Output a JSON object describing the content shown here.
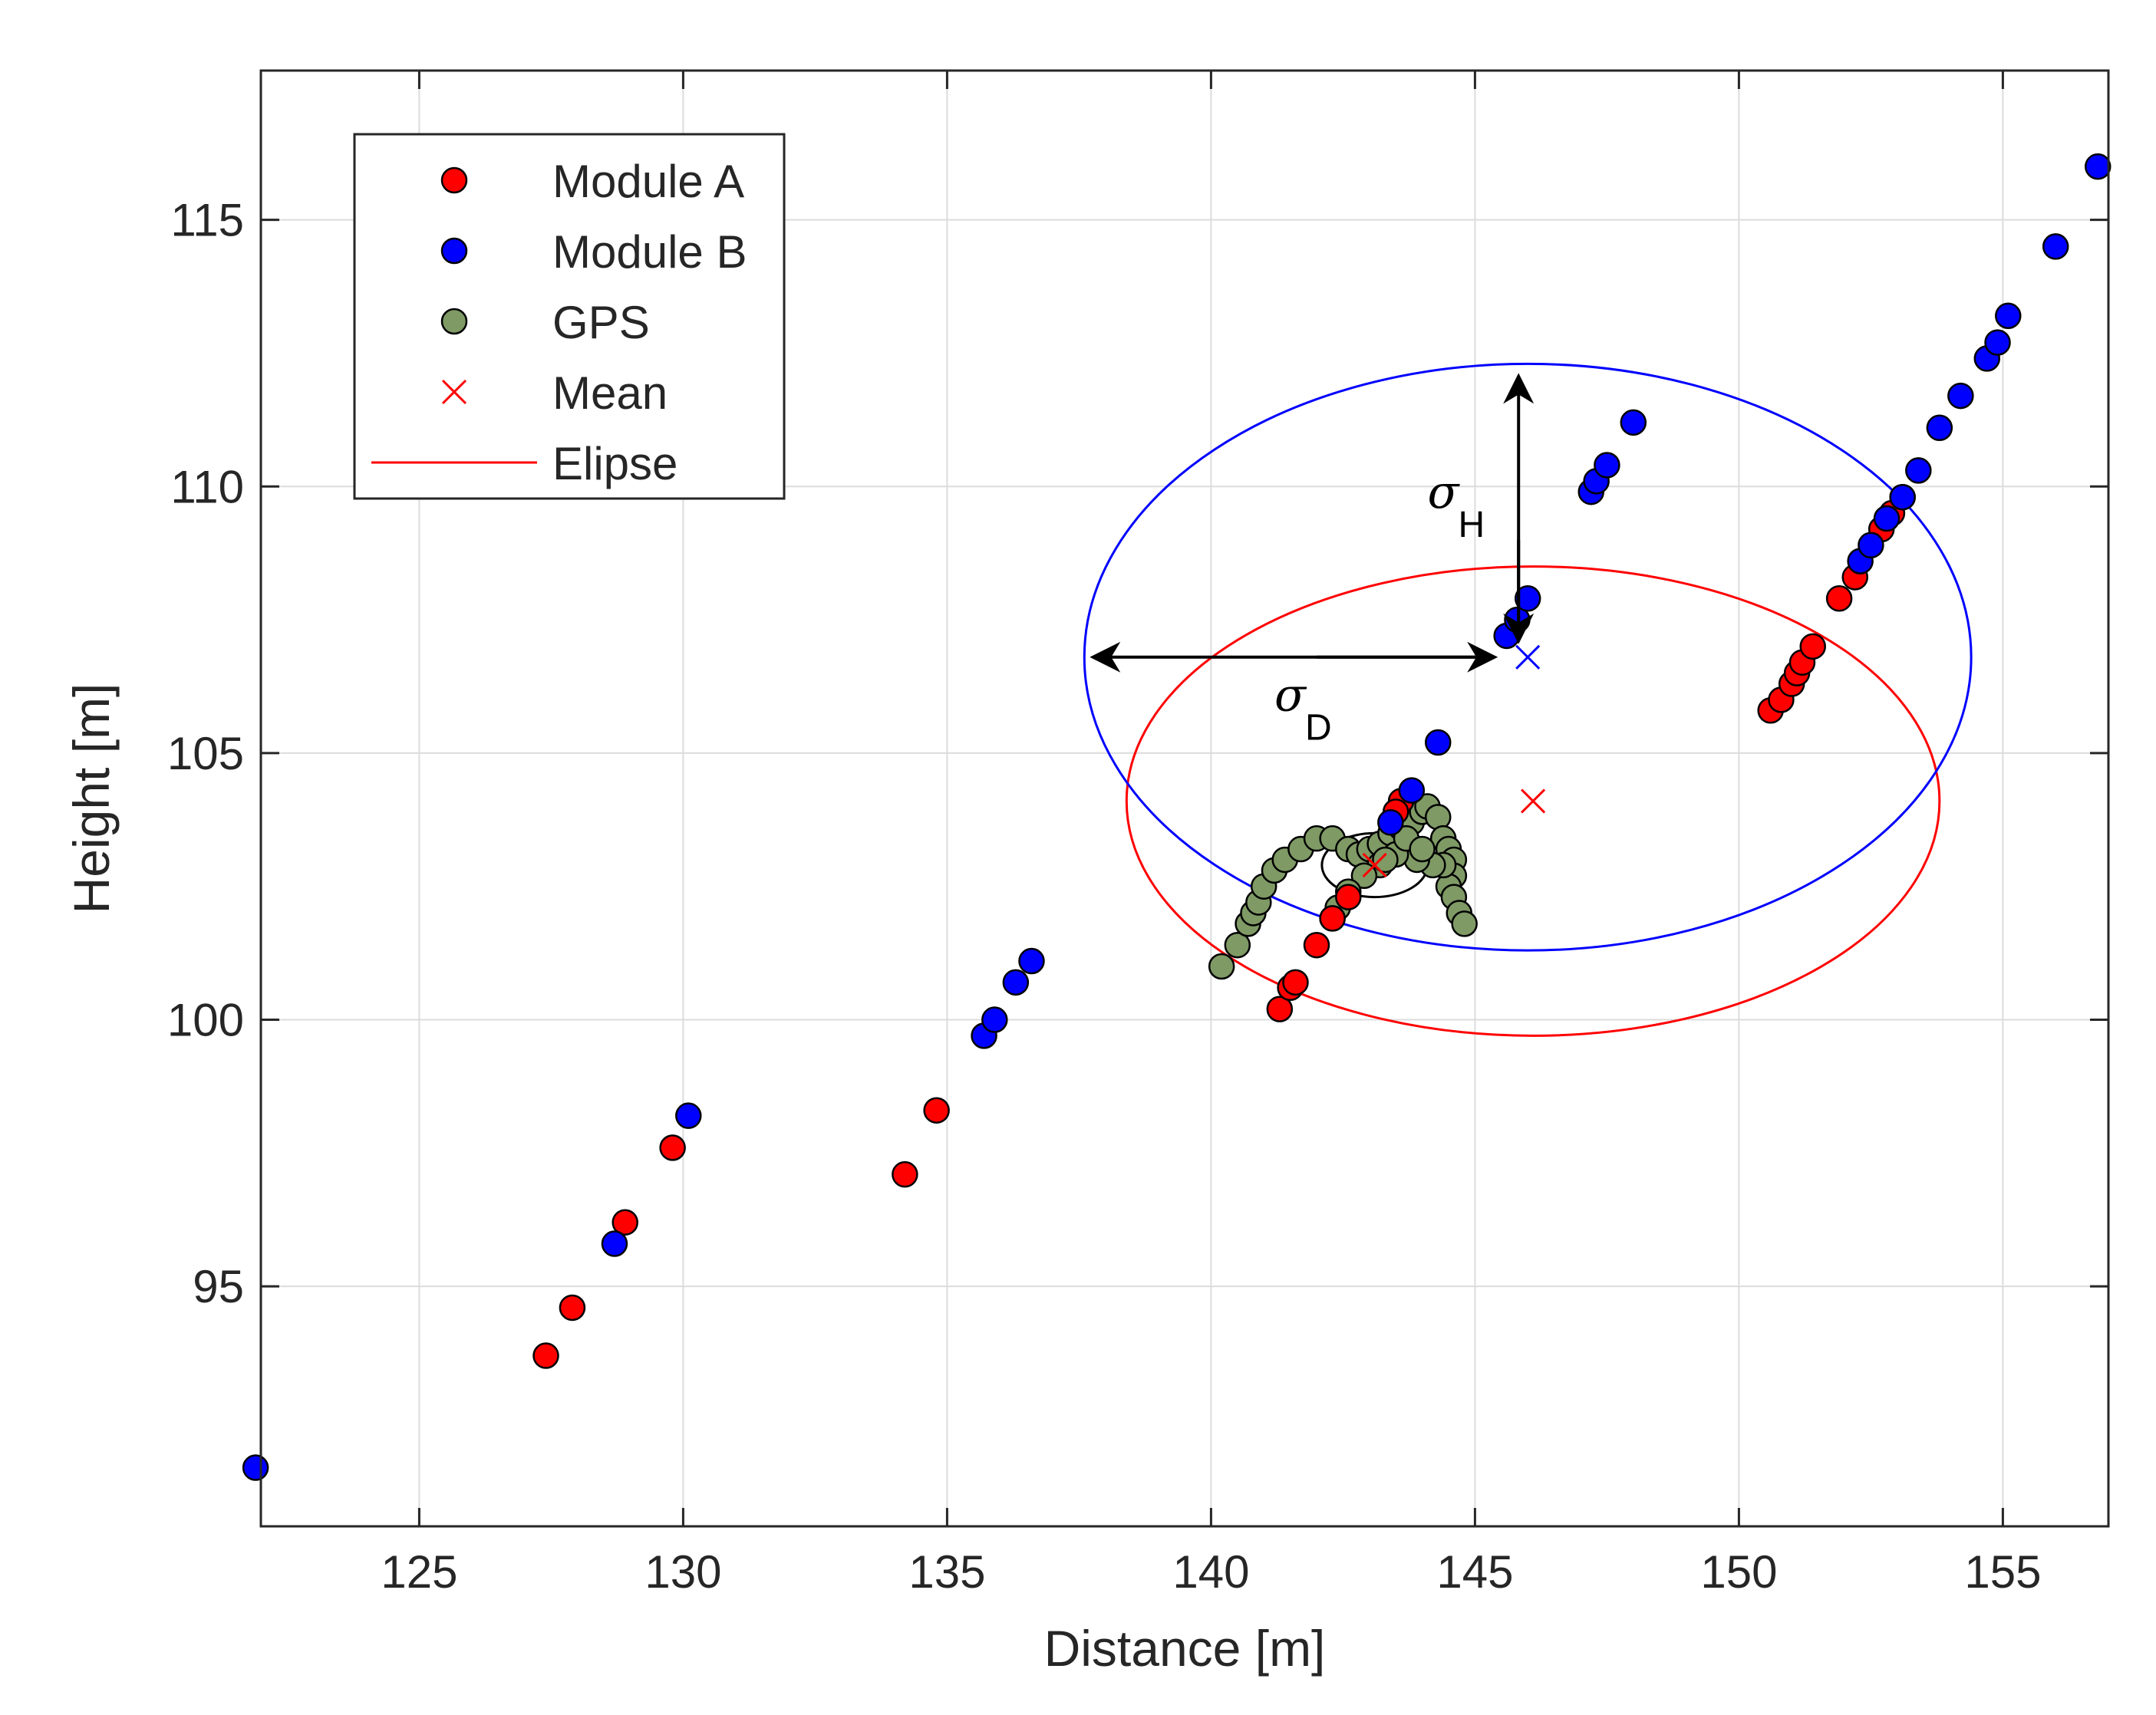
{
  "chart_data": {
    "type": "scatter",
    "title": "",
    "xlabel": "Distance [m]",
    "ylabel": "Height [m]",
    "xlim": [
      122,
      157
    ],
    "ylim": [
      90.5,
      117.8
    ],
    "xticks": [
      125,
      130,
      135,
      140,
      145,
      150,
      155
    ],
    "yticks": [
      95,
      100,
      105,
      110,
      115
    ],
    "xtick_labels": [
      "125",
      "130",
      "135",
      "140",
      "145",
      "150",
      "155"
    ],
    "ytick_labels": [
      "95",
      "100",
      "105",
      "110",
      "115"
    ],
    "grid": true,
    "legend_position": "top-left",
    "series": [
      {
        "name": "Module A",
        "marker": "circle",
        "color": "#ff0000",
        "points": [
          [
            127.4,
            93.7
          ],
          [
            127.9,
            94.6
          ],
          [
            128.9,
            96.2
          ],
          [
            129.8,
            97.6
          ],
          [
            134.2,
            97.1
          ],
          [
            134.8,
            98.3
          ],
          [
            141.3,
            100.2
          ],
          [
            141.5,
            100.6
          ],
          [
            141.6,
            100.7
          ],
          [
            142.0,
            101.4
          ],
          [
            142.3,
            101.9
          ],
          [
            142.6,
            102.3
          ],
          [
            143.6,
            104.1
          ],
          [
            143.5,
            103.9
          ],
          [
            150.6,
            105.8
          ],
          [
            150.8,
            106.0
          ],
          [
            151.0,
            106.3
          ],
          [
            151.1,
            106.5
          ],
          [
            151.2,
            106.7
          ],
          [
            151.4,
            107.0
          ],
          [
            151.9,
            107.9
          ],
          [
            152.2,
            108.3
          ],
          [
            152.7,
            109.2
          ],
          [
            152.9,
            109.5
          ],
          [
            153.1,
            109.8
          ]
        ]
      },
      {
        "name": "Module B",
        "marker": "circle",
        "color": "#0000ff",
        "points": [
          [
            121.9,
            91.6
          ],
          [
            128.7,
            95.8
          ],
          [
            130.1,
            98.2
          ],
          [
            135.7,
            99.7
          ],
          [
            135.9,
            100.0
          ],
          [
            136.3,
            100.7
          ],
          [
            136.6,
            101.1
          ],
          [
            143.4,
            103.7
          ],
          [
            143.8,
            104.3
          ],
          [
            144.3,
            105.2
          ],
          [
            145.6,
            107.2
          ],
          [
            145.8,
            107.5
          ],
          [
            146.0,
            107.9
          ],
          [
            147.2,
            109.9
          ],
          [
            147.3,
            110.1
          ],
          [
            147.5,
            110.4
          ],
          [
            148.0,
            111.2
          ],
          [
            152.3,
            108.6
          ],
          [
            152.5,
            108.9
          ],
          [
            152.8,
            109.4
          ],
          [
            153.1,
            109.8
          ],
          [
            153.4,
            110.3
          ],
          [
            153.8,
            111.1
          ],
          [
            154.2,
            111.7
          ],
          [
            154.7,
            112.4
          ],
          [
            154.9,
            112.7
          ],
          [
            155.1,
            113.2
          ],
          [
            156.0,
            114.5
          ],
          [
            156.8,
            116.0
          ]
        ]
      },
      {
        "name": "GPS",
        "marker": "circle",
        "color": "#7f9a65",
        "points": [
          [
            140.2,
            101.0
          ],
          [
            140.5,
            101.4
          ],
          [
            140.7,
            101.8
          ],
          [
            140.8,
            102.0
          ],
          [
            140.9,
            102.2
          ],
          [
            141.0,
            102.5
          ],
          [
            141.2,
            102.8
          ],
          [
            141.4,
            103.0
          ],
          [
            141.7,
            103.2
          ],
          [
            142.0,
            103.4
          ],
          [
            142.3,
            103.4
          ],
          [
            142.6,
            103.2
          ],
          [
            142.8,
            103.1
          ],
          [
            143.0,
            103.2
          ],
          [
            143.2,
            103.3
          ],
          [
            143.4,
            103.5
          ],
          [
            143.6,
            103.6
          ],
          [
            143.8,
            103.7
          ],
          [
            144.0,
            103.9
          ],
          [
            144.1,
            104.0
          ],
          [
            144.3,
            103.8
          ],
          [
            144.4,
            103.4
          ],
          [
            144.5,
            103.2
          ],
          [
            144.6,
            103.0
          ],
          [
            144.6,
            102.7
          ],
          [
            144.5,
            102.5
          ],
          [
            144.6,
            102.3
          ],
          [
            144.7,
            102.0
          ],
          [
            144.8,
            101.8
          ],
          [
            144.4,
            102.9
          ],
          [
            144.2,
            102.9
          ],
          [
            143.9,
            103.0
          ],
          [
            143.5,
            103.1
          ],
          [
            143.2,
            102.9
          ],
          [
            142.9,
            102.7
          ],
          [
            142.6,
            102.4
          ],
          [
            142.4,
            102.1
          ],
          [
            142.3,
            101.9
          ],
          [
            143.7,
            103.4
          ],
          [
            144.0,
            103.2
          ],
          [
            143.3,
            103.0
          ]
        ]
      }
    ],
    "mean_points": [
      {
        "name": "Mean A",
        "x": 146.1,
        "y": 104.1,
        "color": "#ff0000"
      },
      {
        "name": "Mean B",
        "x": 146.0,
        "y": 106.8,
        "color": "#0000ff"
      },
      {
        "name": "Mean GPS",
        "x": 143.1,
        "y": 102.9,
        "color": "#ff0000"
      }
    ],
    "ellipses": [
      {
        "name": "Ellipse A",
        "cx": 146.1,
        "cy": 104.1,
        "rx": 7.7,
        "ry": 4.4,
        "color": "#ff0000"
      },
      {
        "name": "Ellipse B",
        "cx": 146.0,
        "cy": 106.8,
        "rx": 8.4,
        "ry": 5.5,
        "color": "#0000ff"
      },
      {
        "name": "Ellipse GPS",
        "cx": 143.1,
        "cy": 102.9,
        "rx": 1.0,
        "ry": 0.6,
        "color": "#000000"
      }
    ],
    "legend": [
      {
        "label": "Module A",
        "kind": "marker",
        "color": "#ff0000"
      },
      {
        "label": "Module B",
        "kind": "marker",
        "color": "#0000ff"
      },
      {
        "label": "GPS",
        "kind": "marker",
        "color": "#7f9a65"
      },
      {
        "label": "Mean",
        "kind": "cross",
        "color": "#ff0000"
      },
      {
        "label": "Elipse",
        "kind": "line",
        "color": "#ff0000"
      }
    ],
    "annotations": {
      "sigma_h": {
        "symbol": "σ",
        "sub": "H"
      },
      "sigma_d": {
        "symbol": "σ",
        "sub": "D"
      }
    }
  }
}
